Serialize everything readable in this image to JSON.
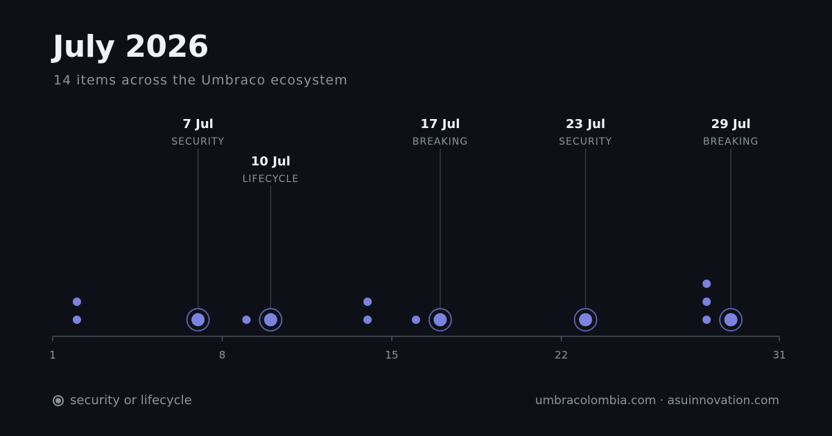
{
  "header": {
    "title": "July 2026",
    "subtitle": "14 items across the Umbraco ecosystem"
  },
  "legend": {
    "label": "security or lifecycle"
  },
  "footer": {
    "text": "umbracolombia.com · asuinnovation.com"
  },
  "colors": {
    "dot": "#7b83e0",
    "ring": "#5a5fa8",
    "axis": "#4a5160",
    "leader": "#3a404c",
    "label_date": "#f0f3f6",
    "label_category": "#8b949e"
  },
  "chart_data": {
    "type": "scatter",
    "title": "July 2026",
    "subtitle": "14 items across the Umbraco ecosystem",
    "x_axis": {
      "min": 1,
      "max": 31,
      "ticks": [
        1,
        8,
        15,
        22,
        31
      ]
    },
    "points": [
      {
        "day": 2,
        "stack": 0,
        "highlighted": false
      },
      {
        "day": 2,
        "stack": 1,
        "highlighted": false
      },
      {
        "day": 7,
        "stack": 0,
        "highlighted": true,
        "date_label": "7 Jul",
        "category": "SECURITY",
        "label_row": 0
      },
      {
        "day": 9,
        "stack": 0,
        "highlighted": false
      },
      {
        "day": 10,
        "stack": 0,
        "highlighted": true,
        "date_label": "10 Jul",
        "category": "LIFECYCLE",
        "label_row": 1
      },
      {
        "day": 14,
        "stack": 0,
        "highlighted": false
      },
      {
        "day": 14,
        "stack": 1,
        "highlighted": false
      },
      {
        "day": 16,
        "stack": 0,
        "highlighted": false
      },
      {
        "day": 17,
        "stack": 0,
        "highlighted": true,
        "date_label": "17 Jul",
        "category": "BREAKING",
        "label_row": 0
      },
      {
        "day": 23,
        "stack": 0,
        "highlighted": true,
        "date_label": "23 Jul",
        "category": "SECURITY",
        "label_row": 0
      },
      {
        "day": 28,
        "stack": 0,
        "highlighted": false
      },
      {
        "day": 28,
        "stack": 1,
        "highlighted": false
      },
      {
        "day": 28,
        "stack": 2,
        "highlighted": false
      },
      {
        "day": 29,
        "stack": 0,
        "highlighted": true,
        "date_label": "29 Jul",
        "category": "BREAKING",
        "label_row": 0
      }
    ],
    "legend": "bottom-left",
    "grid": false
  }
}
